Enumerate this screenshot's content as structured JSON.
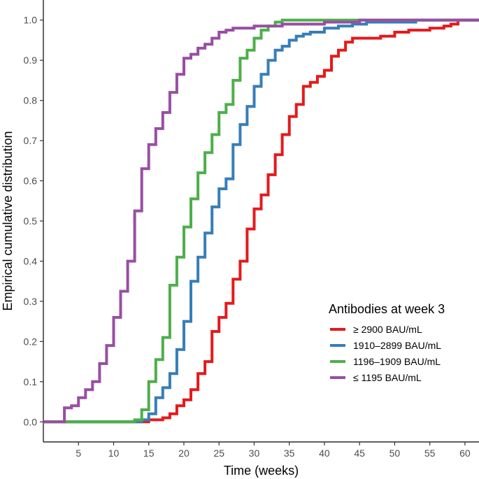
{
  "chart_data": {
    "type": "line",
    "step": true,
    "title": "",
    "xlabel": "Time (weeks)",
    "ylabel": "Empirical cumulative distribution",
    "xlim": [
      0,
      62
    ],
    "ylim": [
      -0.05,
      1.05
    ],
    "xticks": [
      5,
      10,
      15,
      20,
      25,
      30,
      35,
      40,
      45,
      50,
      55,
      60
    ],
    "yticks": [
      0.0,
      0.1,
      0.2,
      0.3,
      0.4,
      0.5,
      0.6,
      0.7,
      0.8,
      0.9,
      1.0
    ],
    "ytick_labels": [
      "0.0",
      "0.1",
      "0.2",
      "0.3",
      "0.4",
      "0.5",
      "0.6",
      "0.7",
      "0.8",
      "0.9",
      "1.0"
    ],
    "grid": false,
    "legend": {
      "title": "Antibodies at week 3",
      "position": "bottom-right"
    },
    "series": [
      {
        "name": "≥ 2900 BAU/mL",
        "color": "#e41a1c",
        "points": [
          [
            0,
            0
          ],
          [
            14,
            0
          ],
          [
            15,
            0.005
          ],
          [
            17,
            0.01
          ],
          [
            18,
            0.02
          ],
          [
            19,
            0.04
          ],
          [
            20,
            0.055
          ],
          [
            21,
            0.08
          ],
          [
            22,
            0.12
          ],
          [
            23,
            0.15
          ],
          [
            24,
            0.225
          ],
          [
            25,
            0.26
          ],
          [
            26,
            0.295
          ],
          [
            27,
            0.355
          ],
          [
            28,
            0.4
          ],
          [
            29,
            0.48
          ],
          [
            30,
            0.53
          ],
          [
            31,
            0.565
          ],
          [
            32,
            0.615
          ],
          [
            33,
            0.665
          ],
          [
            34,
            0.715
          ],
          [
            35,
            0.76
          ],
          [
            36,
            0.79
          ],
          [
            37,
            0.835
          ],
          [
            38,
            0.845
          ],
          [
            39,
            0.86
          ],
          [
            40,
            0.875
          ],
          [
            41,
            0.91
          ],
          [
            42,
            0.925
          ],
          [
            43,
            0.945
          ],
          [
            44,
            0.955
          ],
          [
            46,
            0.955
          ],
          [
            48,
            0.96
          ],
          [
            50,
            0.97
          ],
          [
            52,
            0.975
          ],
          [
            55,
            0.98
          ],
          [
            57,
            0.985
          ],
          [
            58,
            0.99
          ],
          [
            59,
            1.0
          ],
          [
            62,
            1.0
          ]
        ]
      },
      {
        "name": "1910–2899 BAU/mL",
        "color": "#377eb8",
        "points": [
          [
            0,
            0
          ],
          [
            13,
            0
          ],
          [
            14,
            0.005
          ],
          [
            15,
            0.02
          ],
          [
            16,
            0.06
          ],
          [
            17,
            0.085
          ],
          [
            18,
            0.12
          ],
          [
            19,
            0.18
          ],
          [
            20,
            0.25
          ],
          [
            21,
            0.35
          ],
          [
            22,
            0.41
          ],
          [
            23,
            0.47
          ],
          [
            24,
            0.535
          ],
          [
            25,
            0.58
          ],
          [
            26,
            0.605
          ],
          [
            27,
            0.69
          ],
          [
            28,
            0.74
          ],
          [
            29,
            0.785
          ],
          [
            30,
            0.835
          ],
          [
            31,
            0.865
          ],
          [
            32,
            0.9
          ],
          [
            33,
            0.925
          ],
          [
            34,
            0.935
          ],
          [
            35,
            0.95
          ],
          [
            36,
            0.96
          ],
          [
            37,
            0.965
          ],
          [
            38,
            0.97
          ],
          [
            40,
            0.98
          ],
          [
            42,
            0.985
          ],
          [
            44,
            0.99
          ],
          [
            46,
            0.995
          ],
          [
            48,
            0.995
          ],
          [
            53,
            1.0
          ],
          [
            62,
            1.0
          ]
        ]
      },
      {
        "name": "1196–1909 BAU/mL",
        "color": "#4daf4a",
        "points": [
          [
            0,
            0
          ],
          [
            12,
            0
          ],
          [
            13,
            0.005
          ],
          [
            14,
            0.03
          ],
          [
            15,
            0.1
          ],
          [
            16,
            0.155
          ],
          [
            17,
            0.21
          ],
          [
            18,
            0.34
          ],
          [
            19,
            0.41
          ],
          [
            20,
            0.485
          ],
          [
            21,
            0.555
          ],
          [
            22,
            0.62
          ],
          [
            23,
            0.67
          ],
          [
            24,
            0.715
          ],
          [
            25,
            0.77
          ],
          [
            26,
            0.79
          ],
          [
            27,
            0.85
          ],
          [
            28,
            0.905
          ],
          [
            29,
            0.925
          ],
          [
            30,
            0.955
          ],
          [
            31,
            0.975
          ],
          [
            32,
            0.985
          ],
          [
            33,
            0.995
          ],
          [
            34,
            1.0
          ],
          [
            62,
            1.0
          ]
        ]
      },
      {
        "name": "≤ 1195 BAU/mL",
        "color": "#984ea3",
        "points": [
          [
            0,
            0
          ],
          [
            3,
            0
          ],
          [
            3,
            0.035
          ],
          [
            4,
            0.04
          ],
          [
            5,
            0.06
          ],
          [
            6,
            0.08
          ],
          [
            7,
            0.1
          ],
          [
            8,
            0.145
          ],
          [
            9,
            0.19
          ],
          [
            10,
            0.26
          ],
          [
            11,
            0.325
          ],
          [
            12,
            0.4
          ],
          [
            13,
            0.525
          ],
          [
            14,
            0.63
          ],
          [
            15,
            0.69
          ],
          [
            16,
            0.73
          ],
          [
            17,
            0.77
          ],
          [
            18,
            0.82
          ],
          [
            19,
            0.865
          ],
          [
            20,
            0.905
          ],
          [
            21,
            0.915
          ],
          [
            22,
            0.93
          ],
          [
            23,
            0.94
          ],
          [
            24,
            0.955
          ],
          [
            25,
            0.97
          ],
          [
            26,
            0.975
          ],
          [
            27,
            0.98
          ],
          [
            29,
            0.98
          ],
          [
            30,
            0.985
          ],
          [
            32,
            0.985
          ],
          [
            34,
            0.99
          ],
          [
            36,
            0.99
          ],
          [
            38,
            0.99
          ],
          [
            40,
            0.995
          ],
          [
            42,
            0.995
          ],
          [
            45,
            1.0
          ],
          [
            62,
            1.0
          ]
        ]
      }
    ]
  }
}
